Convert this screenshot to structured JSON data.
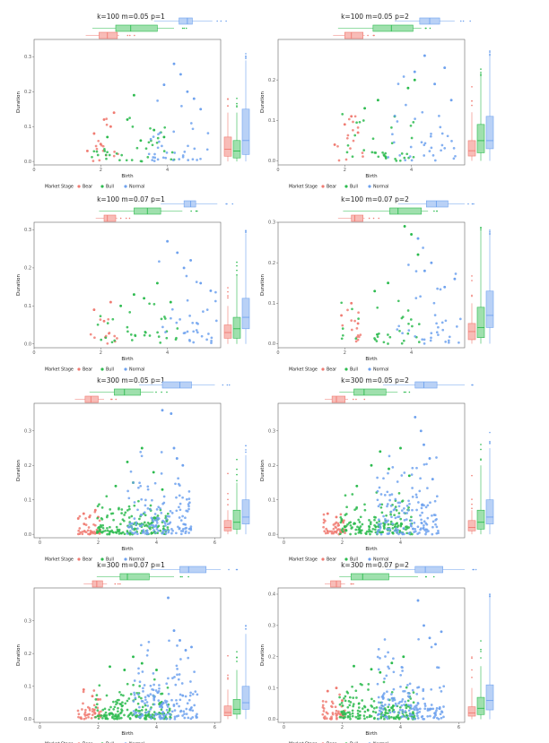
{
  "colors": {
    "Bear": "#f07b72",
    "Bull": "#2dbb4f",
    "Normal": "#6fa2ee"
  },
  "legend": {
    "title": "Market Stage",
    "items": [
      "Bear",
      "Bull",
      "Normal"
    ]
  },
  "chart_data": [
    {
      "type": "scatter",
      "title": "k=100 m=0.05 p=1",
      "xlabel": "Birth",
      "ylabel": "Duration",
      "xlim": [
        0,
        5.6
      ],
      "ylim": [
        -0.01,
        0.35
      ],
      "xticks": [
        0,
        2,
        4
      ],
      "yticks": [
        0,
        0.1,
        0.2,
        0.3
      ],
      "ytick_labels": [
        "0.0",
        "0.1",
        "0.2",
        "0.3"
      ],
      "grid": false,
      "legend_position": "bottom",
      "series": [
        {
          "name": "Bear",
          "n": 14,
          "x_range": [
            1.55,
            2.55
          ],
          "y_scale": 0.04,
          "x": [
            1.6,
            1.8,
            2.0,
            2.1,
            2.3,
            2.4
          ],
          "y": [
            0.03,
            0.08,
            0.05,
            0.12,
            0.1,
            0.14
          ],
          "box_y": [
            0.0,
            0.015,
            0.035,
            0.07,
            0.14
          ],
          "box_x": [
            1.55,
            1.95,
            2.2,
            2.5,
            2.55
          ]
        },
        {
          "name": "Bull",
          "n": 34,
          "x_range": [
            1.7,
            4.25
          ],
          "y_scale": 0.04,
          "x": [
            2.2,
            2.8,
            3.0,
            3.2,
            3.6,
            3.9
          ],
          "y": [
            0.07,
            0.12,
            0.19,
            0.06,
            0.09,
            0.07
          ],
          "box_y": [
            0.0,
            0.01,
            0.03,
            0.06,
            0.14
          ],
          "box_x": [
            1.75,
            2.45,
            2.9,
            3.7,
            4.2
          ]
        },
        {
          "name": "Normal",
          "n": 36,
          "x_range": [
            3.4,
            5.3
          ],
          "y_scale": 0.06,
          "x": [
            3.9,
            4.2,
            4.4,
            4.6,
            4.8,
            5.0
          ],
          "y": [
            0.22,
            0.28,
            0.25,
            0.2,
            0.18,
            0.15
          ],
          "box_y": [
            0.0,
            0.02,
            0.06,
            0.15,
            0.29
          ],
          "box_x": [
            3.6,
            4.35,
            4.6,
            4.75,
            5.35
          ]
        }
      ]
    },
    {
      "type": "scatter",
      "title": "k=100 m=0.05 p=2",
      "xlabel": "Birth",
      "ylabel": "Duration",
      "xlim": [
        0,
        5.6
      ],
      "ylim": [
        -0.01,
        0.3
      ],
      "xticks": [
        0,
        2,
        4
      ],
      "yticks": [
        0,
        0.1,
        0.2
      ],
      "ytick_labels": [
        "0.0",
        "0.1",
        "0.2"
      ],
      "grid": false,
      "legend_position": "bottom",
      "series": [
        {
          "name": "Bear",
          "n": 14,
          "x_range": [
            1.6,
            2.6
          ],
          "y_scale": 0.035,
          "x": [
            1.7,
            2.0,
            2.2,
            2.4
          ],
          "y": [
            0.04,
            0.09,
            0.11,
            0.07
          ],
          "box_y": [
            0.0,
            0.012,
            0.025,
            0.05,
            0.12
          ],
          "box_x": [
            1.65,
            2.0,
            2.2,
            2.55,
            2.6
          ]
        },
        {
          "name": "Bull",
          "n": 34,
          "x_range": [
            1.8,
            4.2
          ],
          "y_scale": 0.045,
          "x": [
            2.6,
            3.0,
            3.5,
            3.9,
            4.1
          ],
          "y": [
            0.13,
            0.15,
            0.11,
            0.18,
            0.2
          ],
          "box_y": [
            0.0,
            0.02,
            0.05,
            0.09,
            0.21
          ],
          "box_x": [
            1.8,
            2.85,
            3.4,
            4.05,
            4.3
          ]
        },
        {
          "name": "Normal",
          "n": 36,
          "x_range": [
            3.3,
            5.4
          ],
          "y_scale": 0.065,
          "x": [
            4.1,
            4.4,
            4.7,
            5.0,
            5.2
          ],
          "y": [
            0.22,
            0.26,
            0.19,
            0.23,
            0.15
          ],
          "box_y": [
            0.0,
            0.03,
            0.05,
            0.11,
            0.26
          ],
          "box_x": [
            3.5,
            4.25,
            4.55,
            4.85,
            5.3
          ]
        }
      ]
    },
    {
      "type": "scatter",
      "title": "k=100 m=0.07 p=1",
      "xlabel": "Birth",
      "ylabel": "Duration",
      "xlim": [
        0,
        5.6
      ],
      "ylim": [
        -0.01,
        0.32
      ],
      "xticks": [
        0,
        2,
        4
      ],
      "yticks": [
        0,
        0.1,
        0.2,
        0.3
      ],
      "ytick_labels": [
        "0.0",
        "0.1",
        "0.2",
        "0.3"
      ],
      "grid": false,
      "legend_position": "bottom",
      "series": [
        {
          "name": "Bear",
          "n": 12,
          "x_range": [
            1.7,
            2.5
          ],
          "y_scale": 0.035,
          "x": [
            1.8,
            2.1,
            2.3
          ],
          "y": [
            0.09,
            0.06,
            0.11
          ],
          "box_y": [
            0.0,
            0.015,
            0.03,
            0.05,
            0.1
          ],
          "box_x": [
            1.85,
            2.1,
            2.2,
            2.45,
            2.5
          ]
        },
        {
          "name": "Bull",
          "n": 32,
          "x_range": [
            1.9,
            4.4
          ],
          "y_scale": 0.045,
          "x": [
            2.6,
            3.0,
            3.3,
            3.7,
            4.1
          ],
          "y": [
            0.1,
            0.13,
            0.12,
            0.16,
            0.11
          ],
          "box_y": [
            0.0,
            0.015,
            0.04,
            0.07,
            0.18
          ],
          "box_x": [
            1.95,
            3.0,
            3.4,
            3.8,
            4.45
          ]
        },
        {
          "name": "Normal",
          "n": 34,
          "x_range": [
            3.6,
            5.5
          ],
          "y_scale": 0.07,
          "x": [
            4.0,
            4.3,
            4.5,
            4.7,
            5.0,
            5.3
          ],
          "y": [
            0.27,
            0.24,
            0.2,
            0.22,
            0.16,
            0.14
          ],
          "box_y": [
            0.0,
            0.04,
            0.07,
            0.12,
            0.29
          ],
          "box_x": [
            3.8,
            4.5,
            4.7,
            4.85,
            5.5
          ]
        }
      ]
    },
    {
      "type": "scatter",
      "title": "k=100 m=0.07 p=2",
      "xlabel": "Birth",
      "ylabel": "Duration",
      "xlim": [
        0,
        5.6
      ],
      "ylim": [
        -0.01,
        0.3
      ],
      "xticks": [
        0,
        2,
        4
      ],
      "yticks": [
        0,
        0.1,
        0.2,
        0.3
      ],
      "ytick_labels": [
        "0.0",
        "0.1",
        "0.2",
        "0.3"
      ],
      "grid": false,
      "legend_position": "bottom",
      "series": [
        {
          "name": "Bear",
          "n": 13,
          "x_range": [
            1.7,
            2.6
          ],
          "y_scale": 0.035,
          "x": [
            1.9,
            2.2,
            2.4
          ],
          "y": [
            0.07,
            0.1,
            0.05
          ],
          "box_y": [
            0.0,
            0.01,
            0.03,
            0.05,
            0.1
          ],
          "box_x": [
            1.8,
            2.2,
            2.3,
            2.55,
            2.6
          ]
        },
        {
          "name": "Bull",
          "n": 33,
          "x_range": [
            1.9,
            4.3
          ],
          "y_scale": 0.05,
          "x": [
            2.9,
            3.3,
            3.8,
            4.0,
            4.2
          ],
          "y": [
            0.13,
            0.15,
            0.29,
            0.27,
            0.22
          ],
          "box_y": [
            0.0,
            0.015,
            0.04,
            0.09,
            0.28
          ],
          "box_x": [
            1.95,
            3.35,
            3.6,
            4.3,
            4.5
          ]
        },
        {
          "name": "Normal",
          "n": 35,
          "x_range": [
            3.5,
            5.5
          ],
          "y_scale": 0.07,
          "x": [
            4.2,
            4.4,
            4.6,
            5.0,
            5.3
          ],
          "y": [
            0.26,
            0.18,
            0.2,
            0.14,
            0.16
          ],
          "box_y": [
            0.0,
            0.04,
            0.07,
            0.13,
            0.27
          ],
          "box_x": [
            3.6,
            4.45,
            4.75,
            5.1,
            5.6
          ]
        }
      ]
    },
    {
      "type": "scatter",
      "title": "k=300 m=0.05 p=1",
      "xlabel": "Birth",
      "ylabel": "Duration",
      "xlim": [
        -0.2,
        6.2
      ],
      "ylim": [
        -0.01,
        0.38
      ],
      "xticks": [
        0,
        2,
        4,
        6
      ],
      "yticks": [
        0,
        0.1,
        0.2,
        0.3
      ],
      "ytick_labels": [
        "0.0",
        "0.1",
        "0.2",
        "0.3"
      ],
      "grid": false,
      "legend_position": "bottom",
      "series": [
        {
          "name": "Bear",
          "n": 45,
          "x_range": [
            1.3,
            2.1
          ],
          "y_scale": 0.02,
          "x": [
            1.5,
            1.7,
            1.9,
            2.0
          ],
          "y": [
            0.06,
            0.05,
            0.07,
            0.05
          ],
          "box_y": [
            0.0,
            0.01,
            0.02,
            0.04,
            0.07
          ],
          "box_x": [
            1.2,
            1.55,
            1.75,
            2.0,
            2.2
          ]
        },
        {
          "name": "Bull",
          "n": 160,
          "x_range": [
            1.9,
            4.4
          ],
          "y_scale": 0.035,
          "x": [
            2.6,
            3.0,
            3.2,
            3.5,
            3.9,
            4.2
          ],
          "y": [
            0.14,
            0.21,
            0.15,
            0.25,
            0.18,
            0.13
          ],
          "box_y": [
            0.0,
            0.015,
            0.035,
            0.07,
            0.15
          ],
          "box_x": [
            1.7,
            2.55,
            2.9,
            3.45,
            3.9
          ]
        },
        {
          "name": "Normal",
          "n": 150,
          "x_range": [
            3.0,
            5.2
          ],
          "y_scale": 0.07,
          "x": [
            4.2,
            4.5,
            4.6,
            4.7,
            4.9
          ],
          "y": [
            0.36,
            0.35,
            0.25,
            0.22,
            0.2
          ],
          "box_y": [
            0.0,
            0.03,
            0.05,
            0.1,
            0.23
          ],
          "box_x": [
            3.4,
            4.2,
            4.8,
            5.2,
            6.0
          ]
        }
      ]
    },
    {
      "type": "scatter",
      "title": "k=300 m=0.05 p=2",
      "xlabel": "Birth",
      "ylabel": "Duration",
      "xlim": [
        -0.2,
        6.2
      ],
      "ylim": [
        -0.01,
        0.38
      ],
      "xticks": [
        0,
        2,
        4
      ],
      "yticks": [
        0,
        0.1,
        0.2,
        0.3
      ],
      "ytick_labels": [
        "0.0",
        "0.1",
        "0.2",
        "0.3"
      ],
      "grid": false,
      "legend_position": "bottom",
      "series": [
        {
          "name": "Bear",
          "n": 45,
          "x_range": [
            1.3,
            2.1
          ],
          "y_scale": 0.02,
          "x": [
            1.5,
            1.8,
            2.0
          ],
          "y": [
            0.06,
            0.05,
            0.04
          ],
          "box_y": [
            0.0,
            0.01,
            0.02,
            0.04,
            0.07
          ],
          "box_x": [
            1.4,
            1.65,
            1.8,
            2.1,
            2.2
          ]
        },
        {
          "name": "Bull",
          "n": 160,
          "x_range": [
            1.9,
            4.4
          ],
          "y_scale": 0.035,
          "x": [
            2.5,
            3.0,
            3.3,
            3.6,
            4.0,
            4.3
          ],
          "y": [
            0.14,
            0.2,
            0.24,
            0.19,
            0.25,
            0.17
          ],
          "box_y": [
            0.0,
            0.015,
            0.035,
            0.07,
            0.2
          ],
          "box_x": [
            1.9,
            2.4,
            2.75,
            3.5,
            3.9
          ]
        },
        {
          "name": "Normal",
          "n": 150,
          "x_range": [
            3.2,
            5.3
          ],
          "y_scale": 0.07,
          "x": [
            4.5,
            4.7,
            4.8,
            5.0,
            5.1
          ],
          "y": [
            0.34,
            0.3,
            0.26,
            0.22,
            0.16
          ],
          "box_y": [
            0.0,
            0.03,
            0.05,
            0.1,
            0.25
          ],
          "box_x": [
            3.4,
            4.5,
            4.8,
            5.25,
            6.2
          ]
        }
      ]
    },
    {
      "type": "scatter",
      "title": "k=300 m=0.07 p=1",
      "xlabel": "Birth",
      "ylabel": "Duration",
      "xlim": [
        -0.2,
        6.2
      ],
      "ylim": [
        -0.01,
        0.4
      ],
      "xticks": [
        0,
        2,
        4,
        6
      ],
      "yticks": [
        0,
        0.1,
        0.2,
        0.3
      ],
      "ytick_labels": [
        "0.0",
        "0.1",
        "0.2",
        "0.3"
      ],
      "grid": false,
      "legend_position": "bottom",
      "series": [
        {
          "name": "Bear",
          "n": 45,
          "x_range": [
            1.3,
            2.1
          ],
          "y_scale": 0.025,
          "x": [
            1.5,
            1.8,
            2.0
          ],
          "y": [
            0.09,
            0.07,
            0.06
          ],
          "box_y": [
            0.0,
            0.01,
            0.02,
            0.04,
            0.09
          ],
          "box_x": [
            1.5,
            1.8,
            1.95,
            2.15,
            2.3
          ]
        },
        {
          "name": "Bull",
          "n": 170,
          "x_range": [
            1.9,
            4.5
          ],
          "y_scale": 0.035,
          "x": [
            2.4,
            2.9,
            3.2,
            3.5,
            4.0
          ],
          "y": [
            0.16,
            0.15,
            0.19,
            0.17,
            0.15
          ],
          "box_y": [
            0.0,
            0.015,
            0.03,
            0.06,
            0.15
          ],
          "box_x": [
            1.95,
            2.75,
            3.0,
            3.75,
            4.6
          ]
        },
        {
          "name": "Normal",
          "n": 160,
          "x_range": [
            3.2,
            5.4
          ],
          "y_scale": 0.07,
          "x": [
            4.4,
            4.6,
            4.8,
            5.0,
            5.2
          ],
          "y": [
            0.37,
            0.27,
            0.24,
            0.21,
            0.22
          ],
          "box_y": [
            0.0,
            0.03,
            0.05,
            0.1,
            0.26
          ],
          "box_x": [
            3.8,
            4.8,
            5.1,
            5.7,
            6.2
          ]
        }
      ]
    },
    {
      "type": "scatter",
      "title": "k=300 m=0.07 p=2",
      "xlabel": "Birth",
      "ylabel": "Duration",
      "xlim": [
        -0.2,
        6.2
      ],
      "ylim": [
        -0.01,
        0.42
      ],
      "xticks": [
        0,
        2,
        4,
        6
      ],
      "yticks": [
        0,
        0.1,
        0.2,
        0.3,
        0.4
      ],
      "ytick_labels": [
        "0.0",
        "0.1",
        "0.2",
        "0.3",
        "0.4"
      ],
      "grid": false,
      "legend_position": "bottom",
      "series": [
        {
          "name": "Bear",
          "n": 45,
          "x_range": [
            1.3,
            2.1
          ],
          "y_scale": 0.025,
          "x": [
            1.5,
            1.8,
            2.0
          ],
          "y": [
            0.09,
            0.1,
            0.06
          ],
          "box_y": [
            0.0,
            0.01,
            0.02,
            0.04,
            0.1
          ],
          "box_x": [
            1.4,
            1.6,
            1.8,
            1.95,
            2.1
          ]
        },
        {
          "name": "Bull",
          "n": 170,
          "x_range": [
            1.9,
            4.5
          ],
          "y_scale": 0.035,
          "x": [
            2.4,
            3.0,
            3.3,
            3.7,
            4.1
          ],
          "y": [
            0.17,
            0.16,
            0.15,
            0.18,
            0.2
          ],
          "box_y": [
            0.0,
            0.015,
            0.035,
            0.07,
            0.17
          ],
          "box_x": [
            1.9,
            2.3,
            2.7,
            3.6,
            4.6
          ]
        },
        {
          "name": "Normal",
          "n": 160,
          "x_range": [
            3.2,
            5.5
          ],
          "y_scale": 0.075,
          "x": [
            4.6,
            4.8,
            5.0,
            5.2,
            5.4
          ],
          "y": [
            0.38,
            0.3,
            0.26,
            0.24,
            0.28
          ],
          "box_y": [
            0.0,
            0.03,
            0.06,
            0.11,
            0.39
          ],
          "box_x": [
            3.5,
            4.5,
            4.85,
            5.45,
            6.2
          ]
        }
      ]
    }
  ]
}
